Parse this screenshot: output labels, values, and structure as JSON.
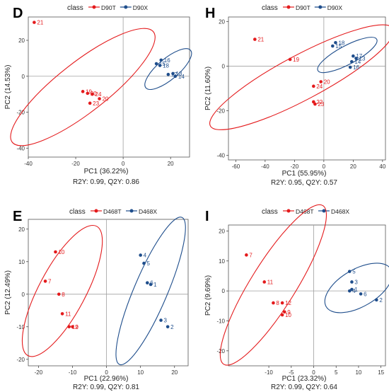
{
  "colors": {
    "red": "#e41a1c",
    "blue": "#1f4e8c",
    "panel_bg": "#ffffff",
    "grid": "#a0a0a0",
    "ellipse_stroke_red": "#e41a1c",
    "ellipse_stroke_blue": "#1f4e8c"
  },
  "chart_data": [
    {
      "panel_letter": "D",
      "type": "scatter",
      "legend_title": "class",
      "legend_position": "top",
      "xlabel": "PC1 (36.22%)",
      "ylabel": "PC2 (14.53%)",
      "caption": "R2Y: 0.99, Q2Y: 0.86",
      "xlim": [
        -40,
        28
      ],
      "ylim": [
        -45,
        33
      ],
      "xticks": [
        -40,
        -20,
        0,
        20
      ],
      "yticks": [
        -40,
        -20,
        0,
        20
      ],
      "series": [
        {
          "name": "D90T",
          "color": "red",
          "points": [
            {
              "x": -37.5,
              "y": 30,
              "label": "21"
            },
            {
              "x": -17,
              "y": -8.5,
              "label": "19"
            },
            {
              "x": -15,
              "y": -9.5,
              "label": "20"
            },
            {
              "x": -13,
              "y": -10,
              "label": "24"
            },
            {
              "x": -10,
              "y": -12.5,
              "label": "20"
            },
            {
              "x": -14,
              "y": -15,
              "label": "23"
            }
          ],
          "ellipse": {
            "cx": -17,
            "cy": -6,
            "rx": 43,
            "ry": 12,
            "angle": -38
          }
        },
        {
          "name": "D90X",
          "color": "blue",
          "points": [
            {
              "x": 16,
              "y": 9,
              "label": "16"
            },
            {
              "x": 14,
              "y": 7,
              "label": "15"
            },
            {
              "x": 15.5,
              "y": 6,
              "label": "18"
            },
            {
              "x": 19,
              "y": 1,
              "label": "17"
            },
            {
              "x": 21,
              "y": 1.5,
              "label": "13"
            },
            {
              "x": 22,
              "y": 0,
              "label": "14"
            }
          ],
          "ellipse": {
            "cx": 19,
            "cy": 4,
            "rx": 14,
            "ry": 5,
            "angle": -40
          }
        }
      ]
    },
    {
      "panel_letter": "H",
      "type": "scatter",
      "legend_title": "class",
      "legend_position": "top",
      "xlabel": "PC1 (55.95%)",
      "ylabel": "PC2 (11.60%)",
      "caption": "R2Y: 0.95, Q2Y: 0.57",
      "xlim": [
        -65,
        42
      ],
      "ylim": [
        -42,
        22
      ],
      "xticks": [
        -60,
        -40,
        -20,
        0,
        20,
        40
      ],
      "yticks": [
        -40,
        -20,
        0,
        20
      ],
      "series": [
        {
          "name": "D90T",
          "color": "red",
          "points": [
            {
              "x": -47,
              "y": 12,
              "label": "21"
            },
            {
              "x": -23,
              "y": 3,
              "label": "19"
            },
            {
              "x": -2,
              "y": -7,
              "label": "20"
            },
            {
              "x": -7,
              "y": -9,
              "label": "24"
            },
            {
              "x": -7,
              "y": -16,
              "label": "22"
            },
            {
              "x": -6,
              "y": -17,
              "label": "23"
            }
          ],
          "ellipse": {
            "cx": -15,
            "cy": -5,
            "rx": 56,
            "ry": 12,
            "angle": -28
          }
        },
        {
          "name": "D90X",
          "color": "blue",
          "points": [
            {
              "x": 8,
              "y": 10.5,
              "label": "18"
            },
            {
              "x": 6,
              "y": 9,
              "label": "15"
            },
            {
              "x": 20,
              "y": 4.5,
              "label": "17"
            },
            {
              "x": 22,
              "y": 3.5,
              "label": "13"
            },
            {
              "x": 19,
              "y": 2,
              "label": "14"
            },
            {
              "x": 18,
              "y": -0.5,
              "label": "16"
            }
          ],
          "ellipse": {
            "cx": 16,
            "cy": 5,
            "rx": 18,
            "ry": 5,
            "angle": -28
          }
        }
      ]
    },
    {
      "panel_letter": "E",
      "type": "scatter",
      "legend_title": "class",
      "legend_position": "top",
      "xlabel": "PC1 (22.96%)",
      "ylabel": "PC2 (12.49%)",
      "caption": "R2Y: 0.99, Q2Y: 0.81",
      "xlim": [
        -23,
        24
      ],
      "ylim": [
        -22,
        23
      ],
      "xticks": [
        -20,
        -10,
        0,
        10,
        20
      ],
      "yticks": [
        -20,
        -10,
        0,
        10,
        20
      ],
      "series": [
        {
          "name": "D468T",
          "color": "red",
          "points": [
            {
              "x": -15,
              "y": 13,
              "label": "10"
            },
            {
              "x": -18,
              "y": 4,
              "label": "7"
            },
            {
              "x": -14,
              "y": 0,
              "label": "8"
            },
            {
              "x": -13,
              "y": -6,
              "label": "11"
            },
            {
              "x": -11,
              "y": -10,
              "label": "12"
            },
            {
              "x": -10,
              "y": -10,
              "label": "9"
            }
          ],
          "ellipse": {
            "cx": -13,
            "cy": 1,
            "rx": 22,
            "ry": 7,
            "angle": -62
          }
        },
        {
          "name": "D468X",
          "color": "blue",
          "points": [
            {
              "x": 10,
              "y": 12,
              "label": "4"
            },
            {
              "x": 11,
              "y": 9.5,
              "label": "5"
            },
            {
              "x": 12,
              "y": 3.5,
              "label": "6"
            },
            {
              "x": 13,
              "y": 3,
              "label": "1"
            },
            {
              "x": 16,
              "y": -8,
              "label": "3"
            },
            {
              "x": 18,
              "y": -10,
              "label": "2"
            }
          ],
          "ellipse": {
            "cx": 13,
            "cy": 1,
            "rx": 24,
            "ry": 5,
            "angle": -67
          }
        }
      ]
    },
    {
      "panel_letter": "I",
      "type": "scatter",
      "legend_title": "class",
      "legend_position": "top",
      "xlabel": "PC1 (23.32%)",
      "ylabel": "PC2 (9.69%)",
      "caption": "R2Y: 0.99, Q2Y: 0.64",
      "xlim": [
        -19,
        16
      ],
      "ylim": [
        -25,
        22
      ],
      "xticks": [
        -10,
        -5,
        0,
        5,
        10,
        15
      ],
      "yticks": [
        -20,
        -10,
        0,
        10,
        20
      ],
      "series": [
        {
          "name": "D468T",
          "color": "red",
          "points": [
            {
              "x": -15,
              "y": 12,
              "label": "7"
            },
            {
              "x": -11,
              "y": 3,
              "label": "11"
            },
            {
              "x": -9,
              "y": -4,
              "label": "8"
            },
            {
              "x": -7,
              "y": -4,
              "label": "12"
            },
            {
              "x": -6.5,
              "y": -7,
              "label": "9"
            },
            {
              "x": -7,
              "y": -8,
              "label": "10"
            }
          ],
          "ellipse": {
            "cx": -9,
            "cy": 2,
            "rx": 25,
            "ry": 6,
            "angle": -58
          }
        },
        {
          "name": "D468X",
          "color": "blue",
          "points": [
            {
              "x": 8,
              "y": 6.5,
              "label": "5"
            },
            {
              "x": 8.5,
              "y": 3,
              "label": "3"
            },
            {
              "x": 8.5,
              "y": 0.5,
              "label": "1"
            },
            {
              "x": 8,
              "y": 0,
              "label": "4"
            },
            {
              "x": 10.5,
              "y": -1,
              "label": "6"
            },
            {
              "x": 14,
              "y": -3,
              "label": "2"
            }
          ],
          "ellipse": {
            "cx": 10,
            "cy": 1,
            "rx": 10,
            "ry": 5,
            "angle": -30
          }
        }
      ]
    }
  ]
}
